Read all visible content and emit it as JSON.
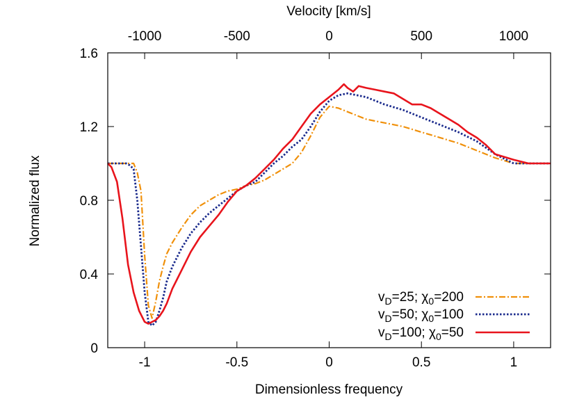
{
  "chart_data": {
    "type": "line",
    "xlabel": "Dimensionless frequency",
    "ylabel": "Normalized flux",
    "x2label": "Velocity [km/s]",
    "xlim": [
      -1.2,
      1.2
    ],
    "ylim": [
      0,
      1.6
    ],
    "x2lim": [
      -1200,
      1200
    ],
    "xticks": [
      -1,
      -0.5,
      0,
      0.5,
      1
    ],
    "xtick_labels": [
      "-1",
      "-0.5",
      "0",
      "0.5",
      "1"
    ],
    "yticks": [
      0,
      0.4,
      0.8,
      1.2,
      1.6
    ],
    "ytick_labels": [
      "0",
      "0.4",
      "0.8",
      "1.2",
      "1.6"
    ],
    "x2ticks": [
      -1000,
      -500,
      0,
      500,
      1000
    ],
    "x2tick_labels": [
      "-1000",
      "-500",
      "0",
      "500",
      "1000"
    ],
    "grid": false,
    "legend_position": "bottom-right",
    "series": [
      {
        "legend": [
          {
            "text": "v",
            "sub": false
          },
          {
            "text": "D",
            "sub": true
          },
          {
            "text": "=25; χ",
            "sub": false
          },
          {
            "text": "0",
            "sub": true
          },
          {
            "text": "=200",
            "sub": false
          }
        ],
        "color": "#f0900a",
        "dash": "9 3 2 3",
        "width": 2.2,
        "x": [
          -1.2,
          -1.06,
          -1.04,
          -1.02,
          -1.0,
          -0.98,
          -0.96,
          -0.94,
          -0.92,
          -0.9,
          -0.88,
          -0.85,
          -0.8,
          -0.75,
          -0.7,
          -0.65,
          -0.6,
          -0.55,
          -0.5,
          -0.45,
          -0.4,
          -0.35,
          -0.3,
          -0.25,
          -0.2,
          -0.15,
          -0.1,
          -0.05,
          0.0,
          0.05,
          0.1,
          0.15,
          0.2,
          0.25,
          0.3,
          0.4,
          0.5,
          0.6,
          0.7,
          0.8,
          0.9,
          1.0,
          1.2
        ],
        "y": [
          1.0,
          1.0,
          0.95,
          0.85,
          0.5,
          0.23,
          0.16,
          0.25,
          0.36,
          0.44,
          0.51,
          0.57,
          0.65,
          0.72,
          0.77,
          0.8,
          0.83,
          0.85,
          0.86,
          0.88,
          0.89,
          0.91,
          0.94,
          0.97,
          1.0,
          1.06,
          1.15,
          1.25,
          1.31,
          1.3,
          1.28,
          1.26,
          1.24,
          1.23,
          1.22,
          1.2,
          1.17,
          1.14,
          1.11,
          1.07,
          1.03,
          1.0,
          1.0
        ]
      },
      {
        "legend": [
          {
            "text": "v",
            "sub": false
          },
          {
            "text": "D",
            "sub": true
          },
          {
            "text": "=50; χ",
            "sub": false
          },
          {
            "text": "0",
            "sub": true
          },
          {
            "text": "=100",
            "sub": false
          }
        ],
        "color": "#1a2a8c",
        "dash": "2.5 2.5",
        "width": 2.8,
        "x": [
          -1.2,
          -1.1,
          -1.08,
          -1.06,
          -1.04,
          -1.02,
          -1.0,
          -0.98,
          -0.96,
          -0.94,
          -0.92,
          -0.9,
          -0.88,
          -0.85,
          -0.8,
          -0.75,
          -0.7,
          -0.65,
          -0.6,
          -0.55,
          -0.5,
          -0.45,
          -0.4,
          -0.35,
          -0.3,
          -0.25,
          -0.2,
          -0.15,
          -0.1,
          -0.05,
          0.0,
          0.05,
          0.1,
          0.15,
          0.2,
          0.25,
          0.3,
          0.4,
          0.5,
          0.6,
          0.7,
          0.8,
          0.9,
          1.0,
          1.2
        ],
        "y": [
          1.0,
          1.0,
          0.99,
          0.97,
          0.8,
          0.55,
          0.3,
          0.14,
          0.12,
          0.14,
          0.2,
          0.27,
          0.36,
          0.44,
          0.54,
          0.62,
          0.68,
          0.73,
          0.77,
          0.81,
          0.85,
          0.88,
          0.9,
          0.95,
          1.0,
          1.04,
          1.09,
          1.13,
          1.2,
          1.28,
          1.34,
          1.37,
          1.38,
          1.37,
          1.36,
          1.34,
          1.32,
          1.29,
          1.25,
          1.21,
          1.17,
          1.12,
          1.05,
          1.0,
          1.0
        ]
      },
      {
        "legend": [
          {
            "text": "v",
            "sub": false
          },
          {
            "text": "D",
            "sub": true
          },
          {
            "text": "=100; χ",
            "sub": false
          },
          {
            "text": "0",
            "sub": true
          },
          {
            "text": "=50",
            "sub": false
          }
        ],
        "color": "#e8141c",
        "dash": "",
        "width": 2.6,
        "x": [
          -1.2,
          -1.18,
          -1.15,
          -1.12,
          -1.09,
          -1.06,
          -1.03,
          -1.0,
          -0.98,
          -0.96,
          -0.94,
          -0.92,
          -0.9,
          -0.88,
          -0.85,
          -0.8,
          -0.75,
          -0.7,
          -0.65,
          -0.6,
          -0.55,
          -0.5,
          -0.45,
          -0.4,
          -0.35,
          -0.3,
          -0.25,
          -0.2,
          -0.15,
          -0.1,
          -0.05,
          0.0,
          0.05,
          0.08,
          0.1,
          0.13,
          0.16,
          0.2,
          0.25,
          0.3,
          0.35,
          0.4,
          0.45,
          0.5,
          0.55,
          0.6,
          0.65,
          0.7,
          0.75,
          0.8,
          0.85,
          0.9,
          1.0,
          1.08,
          1.2
        ],
        "y": [
          1.0,
          0.98,
          0.9,
          0.7,
          0.45,
          0.3,
          0.2,
          0.14,
          0.13,
          0.14,
          0.15,
          0.17,
          0.2,
          0.24,
          0.32,
          0.42,
          0.52,
          0.6,
          0.66,
          0.72,
          0.79,
          0.85,
          0.88,
          0.92,
          0.97,
          1.02,
          1.08,
          1.13,
          1.2,
          1.27,
          1.32,
          1.36,
          1.4,
          1.43,
          1.41,
          1.39,
          1.42,
          1.41,
          1.4,
          1.39,
          1.38,
          1.35,
          1.32,
          1.32,
          1.3,
          1.27,
          1.24,
          1.21,
          1.17,
          1.14,
          1.1,
          1.05,
          1.02,
          1.0,
          1.0
        ]
      }
    ]
  }
}
